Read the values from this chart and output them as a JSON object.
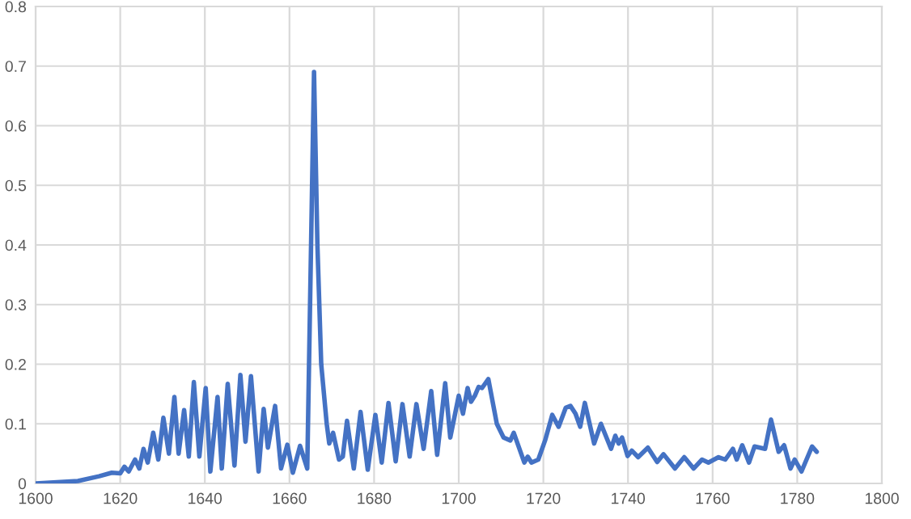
{
  "chart_data": {
    "type": "line",
    "xlim": [
      1600,
      1800
    ],
    "ylim": [
      0,
      0.8
    ],
    "xticks": [
      1600,
      1620,
      1640,
      1660,
      1680,
      1700,
      1720,
      1740,
      1760,
      1780,
      1800
    ],
    "yticks": [
      0,
      0.1,
      0.2,
      0.3,
      0.4,
      0.5,
      0.6,
      0.7,
      0.8
    ],
    "grid": true,
    "legend": false,
    "marker": "none",
    "line_style": "solid",
    "series": [
      {
        "color": "#4472c4",
        "x": [
          1600,
          1610,
          1615,
          1618,
          1620,
          1621,
          1622,
          1623.5,
          1624.5,
          1625.5,
          1626.5,
          1627.8,
          1629,
          1630.2,
          1631.5,
          1632.8,
          1633.8,
          1635.1,
          1636.2,
          1637.4,
          1638.7,
          1640.2,
          1641.3,
          1643,
          1644,
          1645.4,
          1647,
          1648.4,
          1649.6,
          1650.9,
          1652.7,
          1653.9,
          1654.9,
          1656.6,
          1658,
          1659.5,
          1660.8,
          1662.5,
          1664.2,
          1665.8,
          1666.6,
          1667.5,
          1668.8,
          1669.4,
          1670.3,
          1671.7,
          1672.6,
          1673.6,
          1675.2,
          1676.8,
          1678.5,
          1680.3,
          1681.8,
          1683.4,
          1685.1,
          1686.7,
          1688.4,
          1690,
          1691.7,
          1693.5,
          1694.9,
          1696.8,
          1698,
          1700,
          1701,
          1702.1,
          1702.9,
          1703.8,
          1704.7,
          1705.5,
          1707,
          1709,
          1710.6,
          1712.2,
          1713,
          1715.5,
          1716.3,
          1717.2,
          1718.8,
          1720.4,
          1722.1,
          1723.6,
          1725.3,
          1726.4,
          1727.6,
          1728.7,
          1729.8,
          1732,
          1733.6,
          1736,
          1737,
          1737.8,
          1738.6,
          1739.9,
          1740.9,
          1742.4,
          1744.7,
          1746.9,
          1748.4,
          1751.1,
          1753.3,
          1755.5,
          1757.5,
          1759,
          1761.4,
          1763,
          1764.8,
          1765.7,
          1767,
          1768.6,
          1769.9,
          1772.4,
          1773.8,
          1775.6,
          1776.9,
          1778.4,
          1779.4,
          1781,
          1783.5,
          1784.6
        ],
        "values": [
          0,
          0.004,
          0.012,
          0.018,
          0.017,
          0.028,
          0.02,
          0.04,
          0.025,
          0.058,
          0.035,
          0.085,
          0.04,
          0.11,
          0.05,
          0.145,
          0.05,
          0.123,
          0.045,
          0.17,
          0.045,
          0.16,
          0.02,
          0.145,
          0.025,
          0.167,
          0.03,
          0.182,
          0.07,
          0.18,
          0.02,
          0.125,
          0.06,
          0.13,
          0.025,
          0.065,
          0.018,
          0.063,
          0.025,
          0.69,
          0.4,
          0.2,
          0.1,
          0.067,
          0.085,
          0.04,
          0.045,
          0.105,
          0.025,
          0.12,
          0.023,
          0.115,
          0.035,
          0.135,
          0.037,
          0.133,
          0.045,
          0.133,
          0.058,
          0.155,
          0.048,
          0.168,
          0.077,
          0.147,
          0.117,
          0.16,
          0.137,
          0.147,
          0.162,
          0.16,
          0.175,
          0.1,
          0.077,
          0.072,
          0.085,
          0.035,
          0.045,
          0.035,
          0.04,
          0.072,
          0.115,
          0.095,
          0.127,
          0.13,
          0.117,
          0.095,
          0.135,
          0.067,
          0.1,
          0.058,
          0.08,
          0.067,
          0.077,
          0.046,
          0.055,
          0.044,
          0.06,
          0.036,
          0.049,
          0.025,
          0.044,
          0.025,
          0.04,
          0.035,
          0.044,
          0.04,
          0.058,
          0.04,
          0.064,
          0.035,
          0.062,
          0.058,
          0.107,
          0.053,
          0.064,
          0.025,
          0.04,
          0.02,
          0.062,
          0.053
        ]
      }
    ]
  }
}
